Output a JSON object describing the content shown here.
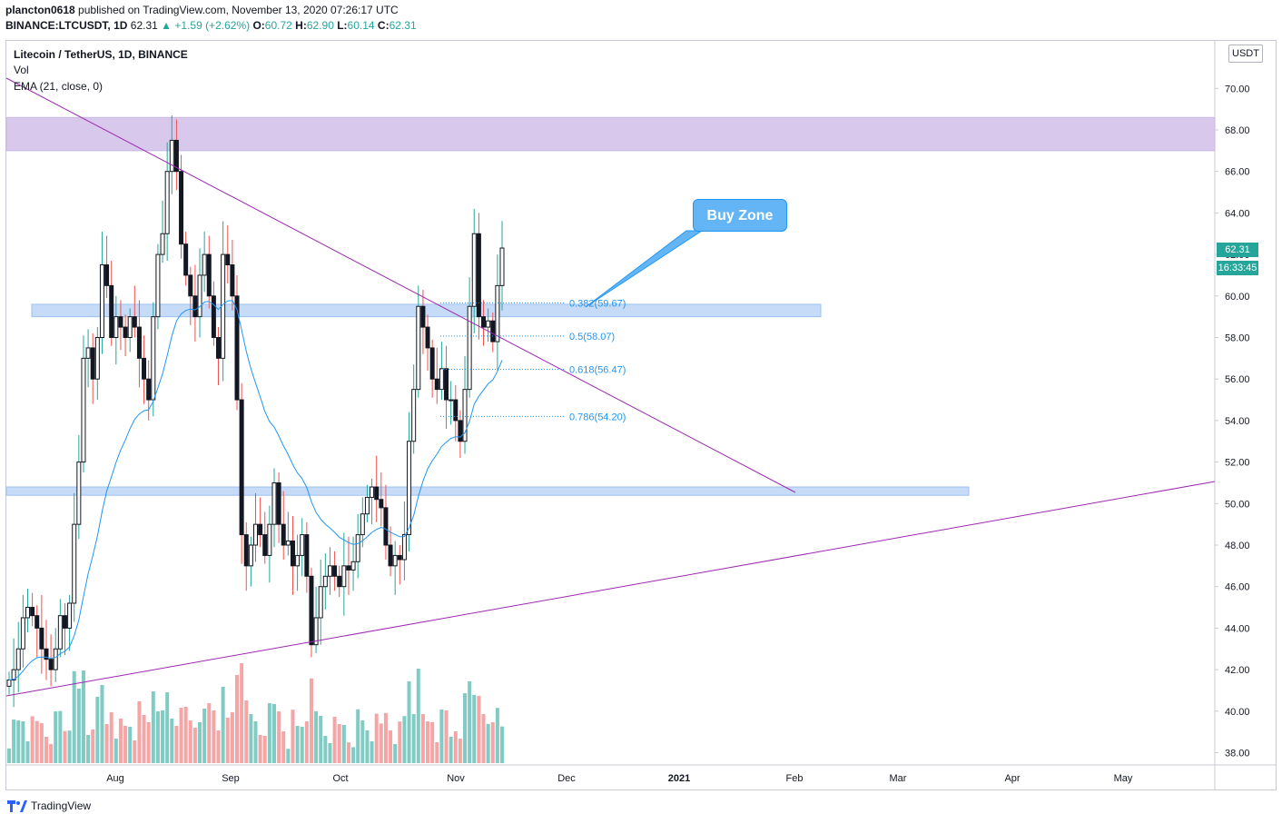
{
  "header": {
    "user": "plancton0618",
    "published_text": "published on TradingView.com, November 13, 2020 07:26:17 UTC",
    "symbol_line": "BINANCE:LTCUSDT, 1D",
    "close_val": "62.31",
    "change": "▲ +1.59 (+2.62%)",
    "o_label": "O:",
    "o_val": "60.72",
    "h_label": "H:",
    "h_val": "62.90",
    "l_label": "L:",
    "l_val": "60.14",
    "c_label": "C:",
    "c_val": "62.31"
  },
  "legend": {
    "title": "Litecoin / TetherUS, 1D, BINANCE",
    "vol": "Vol",
    "ema": "EMA (21, close, 0)"
  },
  "axis": {
    "unit": "USDT",
    "last_price": "62.31",
    "countdown": "16:33:45"
  },
  "annotation": {
    "buy_zone": "Buy Zone"
  },
  "footer": {
    "brand": "TradingView"
  },
  "colors": {
    "up": "#26a69a",
    "down": "#ef5350",
    "candle_body": "#131722",
    "vol_up": "#80cbc4",
    "vol_down": "#f4a5a5",
    "ema": "#2196f3",
    "trendline": "#9c27b0",
    "zone_blue": "#c5dbf7",
    "zone_purple": "#d8c9ec"
  },
  "chart_data": {
    "type": "candlestick",
    "title": "Litecoin / TetherUS, 1D, BINANCE",
    "ylim": [
      37.2,
      71.5
    ],
    "y_ticks": [
      "38.00",
      "40.00",
      "42.00",
      "44.00",
      "46.00",
      "48.00",
      "50.00",
      "52.00",
      "54.00",
      "56.00",
      "58.00",
      "60.00",
      "62.00",
      "64.00",
      "66.00",
      "68.00",
      "70.00"
    ],
    "x_ticks": [
      "Aug",
      "Sep",
      "Oct",
      "Nov",
      "Dec",
      "2021",
      "Feb",
      "Mar",
      "Apr",
      "May"
    ],
    "fib_levels": [
      {
        "label": "0.382(59.67)",
        "value": 59.67
      },
      {
        "label": "0.5(58.07)",
        "value": 58.07
      },
      {
        "label": "0.618(56.47)",
        "value": 56.47
      },
      {
        "label": "0.786(54.20)",
        "value": 54.2
      }
    ],
    "zones": [
      {
        "name": "resistance",
        "low": 67.0,
        "high": 68.6
      },
      {
        "name": "support-upper",
        "low": 59.0,
        "high": 59.6
      },
      {
        "name": "support-lower",
        "low": 50.4,
        "high": 50.8
      }
    ],
    "candles_ohlc_sample": {
      "first_close": 41.5,
      "high_max": 68.9,
      "low_min": 41.6,
      "last": {
        "o": 60.72,
        "h": 62.9,
        "l": 60.14,
        "c": 62.31
      }
    }
  }
}
